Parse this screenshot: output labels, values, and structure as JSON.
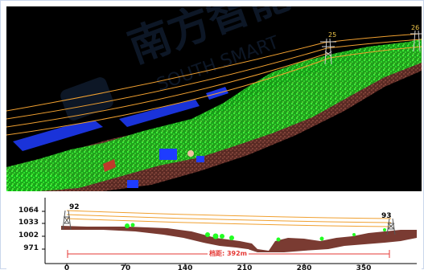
{
  "pointcloud_view": {
    "tower_tags": [
      "25",
      "26"
    ]
  },
  "watermark": {
    "brand_text": "南方智能",
    "english_text": "SOUTH SMART"
  },
  "profile_view": {
    "y_ticks": [
      "1064",
      "1033",
      "1002",
      "971"
    ],
    "x_ticks": [
      "0",
      "70",
      "140",
      "210",
      "280",
      "350"
    ],
    "tower_start": "92",
    "tower_end": "93",
    "span_label": "档距: 392m"
  },
  "colors": {
    "vegetation": "#22ff22",
    "ground": "#7a3b32",
    "water_buildings": "#1e3cff",
    "conductor": "#f0a030",
    "span_marker": "#e53935"
  }
}
